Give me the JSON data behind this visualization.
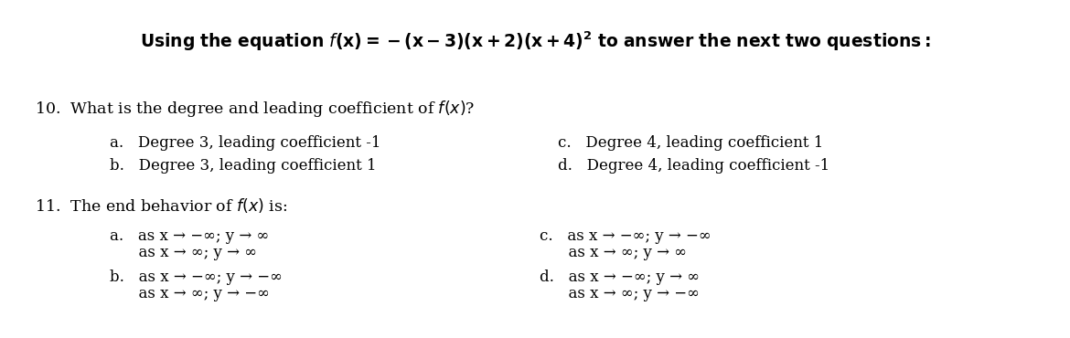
{
  "bg_color": "#ffffff",
  "title_normal": "Using the equation ",
  "title_eq": "f(x) = −(x − 3)(x + 2)(x + 4)²",
  "title_end": " to answer the next two questions:",
  "q10_label": "10.",
  "q10_question_pre": "  What is the degree and leading coefficient of ",
  "q10_question_fx": "f (x)",
  "q10_question_end": "?",
  "q10_a": "a.   Degree 3, leading coefficient -1",
  "q10_b": "b.   Degree 3, leading coefficient 1",
  "q10_c": "c.   Degree 4, leading coefficient 1",
  "q10_d": "d.   Degree 4, leading coefficient -1",
  "q11_label": "11.",
  "q11_question_pre": "  The end behavior of ",
  "q11_question_fx": "f (x)",
  "q11_question_end": " is:",
  "q11_a1": "a.   as x → −∞; y → ∞",
  "q11_a2": "      as x → ∞; y → ∞",
  "q11_b1": "b.   as x → −∞; y → −∞",
  "q11_b2": "      as x → ∞; y → −∞",
  "q11_c1": "c.   as x → −∞; y → −∞",
  "q11_c2": "      as x → ∞; y → ∞",
  "q11_d1": "d.   as x → −∞; y → ∞",
  "q11_d2": "      as x → ∞; y → −∞",
  "fs_title": 13.5,
  "fs_body": 12.5,
  "fs_opt": 12.0
}
